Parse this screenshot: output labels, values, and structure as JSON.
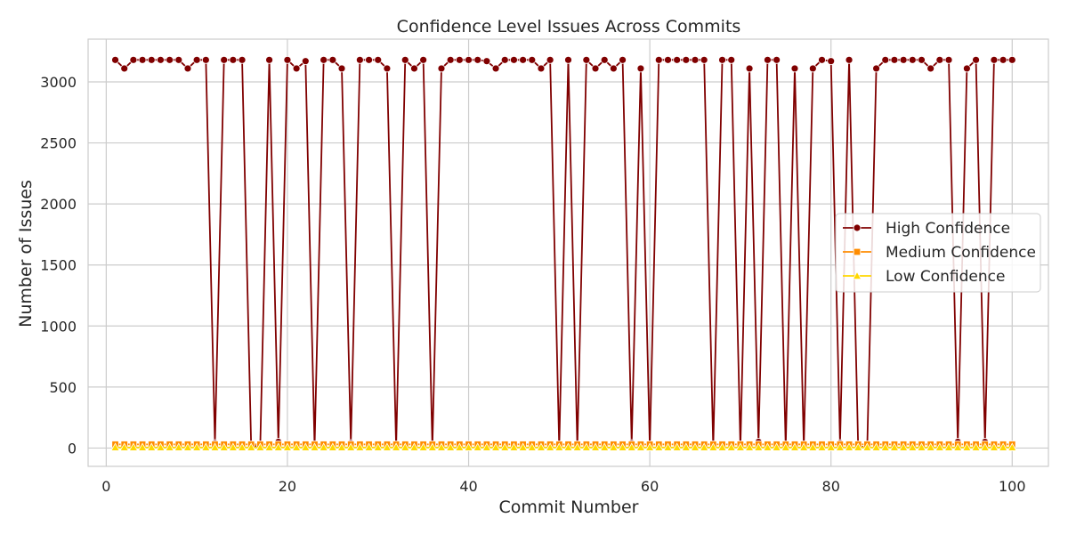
{
  "chart_data": {
    "type": "line",
    "title": "Confidence Level Issues Across Commits",
    "xlabel": "Commit Number",
    "ylabel": "Number of Issues",
    "xlim": [
      -2,
      104
    ],
    "ylim": [
      -150,
      3350
    ],
    "xticks": [
      0,
      20,
      40,
      60,
      80,
      100
    ],
    "yticks": [
      0,
      500,
      1000,
      1500,
      2000,
      2500,
      3000
    ],
    "grid": true,
    "legend_position": "center-right",
    "x": [
      1,
      2,
      3,
      4,
      5,
      6,
      7,
      8,
      9,
      10,
      11,
      12,
      13,
      14,
      15,
      16,
      17,
      18,
      19,
      20,
      21,
      22,
      23,
      24,
      25,
      26,
      27,
      28,
      29,
      30,
      31,
      32,
      33,
      34,
      35,
      36,
      37,
      38,
      39,
      40,
      41,
      42,
      43,
      44,
      45,
      46,
      47,
      48,
      49,
      50,
      51,
      52,
      53,
      54,
      55,
      56,
      57,
      58,
      59,
      60,
      61,
      62,
      63,
      64,
      65,
      66,
      67,
      68,
      69,
      70,
      71,
      72,
      73,
      74,
      75,
      76,
      77,
      78,
      79,
      80,
      81,
      82,
      83,
      84,
      85,
      86,
      87,
      88,
      89,
      90,
      91,
      92,
      93,
      94,
      95,
      96,
      97,
      98,
      99,
      100
    ],
    "series": [
      {
        "name": "High Confidence",
        "color": "#800000",
        "marker": "circle",
        "values": [
          3180,
          3110,
          3180,
          3180,
          3180,
          3180,
          3180,
          3180,
          3110,
          3180,
          3180,
          40,
          3180,
          3180,
          3180,
          10,
          20,
          3180,
          50,
          3180,
          3110,
          3170,
          10,
          3180,
          3180,
          3110,
          40,
          3180,
          3180,
          3180,
          3110,
          10,
          3180,
          3110,
          3180,
          10,
          3110,
          3180,
          3180,
          3180,
          3180,
          3170,
          3110,
          3180,
          3180,
          3180,
          3180,
          3110,
          3180,
          10,
          3180,
          10,
          3180,
          3110,
          3180,
          3110,
          3180,
          40,
          3110,
          10,
          3180,
          3180,
          3180,
          3180,
          3180,
          3180,
          10,
          3180,
          3180,
          10,
          3110,
          50,
          3180,
          3180,
          10,
          3110,
          10,
          3110,
          3180,
          3170,
          40,
          3180,
          10,
          10,
          3110,
          3180,
          3180,
          3180,
          3180,
          3180,
          3110,
          3180,
          3180,
          50,
          3110,
          3180,
          50,
          3180,
          3180,
          3180
        ]
      },
      {
        "name": "Medium Confidence",
        "color": "#ff8c00",
        "marker": "square",
        "values": [
          30,
          30,
          30,
          30,
          30,
          30,
          30,
          30,
          30,
          30,
          30,
          30,
          30,
          30,
          30,
          30,
          30,
          30,
          30,
          30,
          30,
          30,
          30,
          30,
          30,
          30,
          30,
          30,
          30,
          30,
          30,
          30,
          30,
          30,
          30,
          30,
          30,
          30,
          30,
          30,
          30,
          30,
          30,
          30,
          30,
          30,
          30,
          30,
          30,
          30,
          30,
          30,
          30,
          30,
          30,
          30,
          30,
          30,
          30,
          30,
          30,
          30,
          30,
          30,
          30,
          30,
          30,
          30,
          30,
          30,
          30,
          30,
          30,
          30,
          30,
          30,
          30,
          30,
          30,
          30,
          30,
          30,
          30,
          30,
          30,
          30,
          30,
          30,
          30,
          30,
          30,
          30,
          30,
          30,
          30,
          30,
          30,
          30,
          30,
          30
        ]
      },
      {
        "name": "Low Confidence",
        "color": "#ffd700",
        "marker": "triangle",
        "values": [
          5,
          5,
          5,
          5,
          5,
          5,
          5,
          5,
          5,
          5,
          5,
          5,
          5,
          5,
          5,
          5,
          5,
          5,
          5,
          5,
          5,
          5,
          5,
          5,
          5,
          5,
          5,
          5,
          5,
          5,
          5,
          5,
          5,
          5,
          5,
          5,
          5,
          5,
          5,
          5,
          5,
          5,
          5,
          5,
          5,
          5,
          5,
          5,
          5,
          5,
          5,
          5,
          5,
          5,
          5,
          5,
          5,
          5,
          5,
          5,
          5,
          5,
          5,
          5,
          5,
          5,
          5,
          5,
          5,
          5,
          5,
          5,
          5,
          5,
          5,
          5,
          5,
          5,
          5,
          5,
          5,
          5,
          5,
          5,
          5,
          5,
          5,
          5,
          5,
          5,
          5,
          5,
          5,
          5,
          5,
          5,
          5,
          5,
          5,
          5
        ]
      }
    ]
  }
}
